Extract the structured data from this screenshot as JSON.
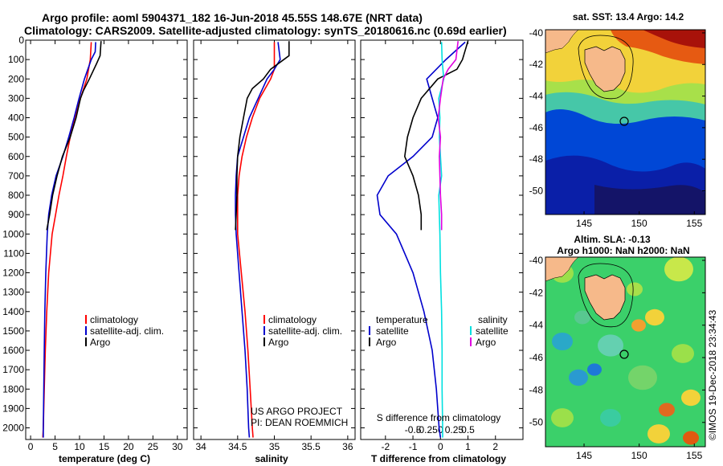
{
  "title": {
    "line1": "Argo profile: aoml 5904371_182 16-Jun-2018 45.55S 148.67E (NRT data)",
    "line2": "Climatology: CARS2009. Satellite-adjusted climatology: synTS_20180616.nc (0.69d earlier)"
  },
  "credit": {
    "line1": "US ARGO PROJECT",
    "line2": "PI: DEAN ROEMMICH",
    "stamp": "©IMOS 19-Dec-2018 23:34:43"
  },
  "colors": {
    "climatology": "#ff0000",
    "satellite": "#0000cc",
    "argo": "#000000",
    "sat_salinity": "#00e0e0",
    "argo_salinity": "#e000e0",
    "land": "#f6b98a"
  },
  "chart_data": [
    {
      "type": "line",
      "name": "temperature",
      "xlabel": "temperature (deg C)",
      "ylabel": "",
      "xlim": [
        -1,
        32
      ],
      "ylim": [
        2060,
        0
      ],
      "xticks": [
        0,
        5,
        10,
        15,
        20,
        25,
        30
      ],
      "yticks": [
        0,
        100,
        200,
        300,
        400,
        500,
        600,
        700,
        800,
        900,
        1000,
        1100,
        1200,
        1300,
        1400,
        1500,
        1600,
        1700,
        1800,
        1900,
        2000
      ],
      "legend": [
        "climatology",
        "satellite-adj. clim.",
        "Argo"
      ],
      "series": [
        {
          "name": "climatology",
          "depth": [
            10,
            100,
            200,
            300,
            400,
            500,
            600,
            700,
            800,
            900,
            1000,
            1200,
            1400,
            1600,
            1800,
            2000,
            2050
          ],
          "values": [
            12.4,
            12.2,
            11.5,
            10.2,
            9.0,
            8.1,
            7.3,
            6.6,
            5.8,
            5.1,
            4.4,
            3.7,
            3.3,
            3.0,
            2.8,
            2.6,
            2.5
          ]
        },
        {
          "name": "satellite-adj. clim.",
          "depth": [
            10,
            60,
            100,
            200,
            300,
            400,
            500,
            600,
            700,
            800,
            900,
            1000,
            1200,
            1400,
            1600,
            1800,
            2000,
            2050
          ],
          "values": [
            13.3,
            13.2,
            12.4,
            11.0,
            9.9,
            8.9,
            7.8,
            6.6,
            5.2,
            4.3,
            3.7,
            3.4,
            3.1,
            2.9,
            2.8,
            2.7,
            2.6,
            2.6
          ]
        },
        {
          "name": "Argo",
          "depth": [
            5,
            80,
            120,
            200,
            260,
            300,
            400,
            500,
            600,
            700,
            800,
            900,
            980
          ],
          "values": [
            14.4,
            14.2,
            13.5,
            12.0,
            10.8,
            10.2,
            9.3,
            8.1,
            6.5,
            5.4,
            4.5,
            3.9,
            3.3
          ]
        }
      ]
    },
    {
      "type": "line",
      "name": "salinity",
      "xlabel": "salinity",
      "ylabel": "",
      "xlim": [
        33.9,
        36.1
      ],
      "ylim": [
        2060,
        0
      ],
      "xticks": [
        34,
        34.5,
        35,
        35.5,
        36
      ],
      "legend": [
        "climatology",
        "satellite-adj. clim.",
        "Argo"
      ],
      "series": [
        {
          "name": "climatology",
          "depth": [
            10,
            100,
            150,
            200,
            300,
            400,
            500,
            600,
            700,
            800,
            900,
            1000,
            1200,
            1400,
            1600,
            1800,
            2000,
            2050
          ],
          "values": [
            35.0,
            35.0,
            35.0,
            34.95,
            34.8,
            34.7,
            34.62,
            34.56,
            34.52,
            34.5,
            34.5,
            34.5,
            34.55,
            34.6,
            34.64,
            34.67,
            34.7,
            34.71
          ]
        },
        {
          "name": "satellite-adj. clim.",
          "depth": [
            10,
            100,
            150,
            200,
            300,
            400,
            500,
            600,
            700,
            800,
            900,
            1000,
            1200,
            1400,
            1600,
            1800,
            2000,
            2050
          ],
          "values": [
            35.05,
            35.08,
            35.0,
            34.9,
            34.78,
            34.66,
            34.58,
            34.5,
            34.48,
            34.47,
            34.47,
            34.48,
            34.52,
            34.56,
            34.6,
            34.63,
            34.65,
            34.66
          ]
        },
        {
          "name": "Argo",
          "depth": [
            5,
            80,
            150,
            200,
            250,
            300,
            400,
            500,
            600,
            700,
            800,
            900,
            980
          ],
          "values": [
            35.2,
            35.2,
            34.95,
            34.85,
            34.7,
            34.63,
            34.58,
            34.53,
            34.5,
            34.49,
            34.49,
            34.48,
            34.47
          ]
        }
      ]
    },
    {
      "type": "line",
      "name": "difference",
      "xlabel": "T difference from climatology",
      "xlabel_top": "S difference from climatology",
      "ylabel": "",
      "xlim": [
        -2.9,
        3.0
      ],
      "ylim": [
        2060,
        0
      ],
      "xticks": [
        -2,
        -1,
        0,
        1,
        2
      ],
      "xticks_top": [
        "-0.5",
        "-0.25",
        "0",
        "0.25",
        "0.5"
      ],
      "legend": {
        "header_t": "temperature",
        "header_s": "salinity",
        "items": [
          "satellite",
          "Argo",
          "satellite",
          "Argo"
        ]
      },
      "series": [
        {
          "name": "T satellite",
          "depth": [
            10,
            100,
            200,
            300,
            400,
            500,
            600,
            700,
            800,
            900,
            1000,
            1200,
            1400,
            1600,
            1800,
            2000,
            2050
          ],
          "values": [
            0.9,
            0.2,
            -0.5,
            -0.3,
            -0.1,
            -0.3,
            -1.0,
            -1.9,
            -2.3,
            -2.2,
            -1.6,
            -1.0,
            -0.6,
            -0.3,
            -0.15,
            -0.05,
            0.0
          ]
        },
        {
          "name": "T Argo",
          "depth": [
            5,
            100,
            150,
            200,
            300,
            400,
            500,
            600,
            700,
            800,
            900,
            980
          ],
          "values": [
            1.0,
            0.8,
            0.6,
            -0.1,
            -0.7,
            -1.0,
            -1.2,
            -1.3,
            -1.0,
            -0.8,
            -0.7,
            -0.7
          ]
        },
        {
          "name": "S satellite",
          "depth": [
            10,
            100,
            200,
            300,
            400,
            500,
            600,
            700,
            800,
            900,
            1000,
            1200,
            1400,
            1600,
            1800,
            2000,
            2050
          ],
          "values": [
            0.02,
            0.03,
            0.06,
            -0.03,
            -0.01,
            -0.02,
            0.0,
            0.02,
            -0.03,
            -0.02,
            -0.01,
            0.0,
            0.02,
            0.03,
            0.03,
            0.04,
            0.04
          ]
        },
        {
          "name": "S Argo",
          "depth": [
            5,
            100,
            150,
            200,
            300,
            400,
            500,
            600,
            700,
            800,
            900,
            980
          ],
          "values": [
            0.32,
            0.28,
            0.14,
            0.05,
            0.0,
            -0.04,
            0.0,
            -0.02,
            -0.01,
            0.0,
            0.02,
            0.02
          ]
        }
      ]
    },
    {
      "type": "heatmap",
      "name": "sst map",
      "title": "sat. SST: 13.4 Argo: 14.2",
      "xlim": [
        141.5,
        156
      ],
      "ylim": [
        -51.5,
        -39.8
      ],
      "xticks": [
        145,
        150,
        155
      ],
      "yticks": [
        -40,
        -42,
        -44,
        -46,
        -48,
        -50
      ],
      "argo_position": [
        148.67,
        -45.55
      ]
    },
    {
      "type": "heatmap",
      "name": "sla map",
      "title": "Altim. SLA: -0.13",
      "subtitle": "Argo h1000: NaN h2000: NaN",
      "xlim": [
        141.5,
        156
      ],
      "ylim": [
        -51.5,
        -39.8
      ],
      "xticks": [
        145,
        150,
        155
      ],
      "yticks": [
        -40,
        -42,
        -44,
        -46,
        -48,
        -50
      ],
      "argo_position": [
        148.67,
        -45.55
      ]
    }
  ]
}
